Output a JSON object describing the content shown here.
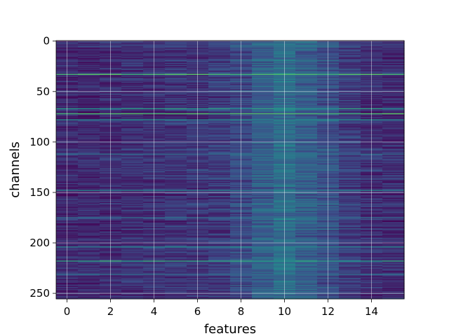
{
  "chart_data": {
    "type": "heatmap",
    "title": "",
    "xlabel": "features",
    "ylabel": "channels",
    "x_range": [
      -0.5,
      15.5
    ],
    "y_range": [
      -0.5,
      255.5
    ],
    "y_inverted": true,
    "x_ticks": [
      0,
      2,
      4,
      6,
      8,
      10,
      12,
      14
    ],
    "y_ticks": [
      0,
      50,
      100,
      150,
      200,
      250
    ],
    "grid": true,
    "colormap": "viridis",
    "n_rows": 256,
    "n_cols": 16,
    "column_profile": [
      0.12,
      0.12,
      0.13,
      0.14,
      0.14,
      0.15,
      0.16,
      0.18,
      0.22,
      0.3,
      0.36,
      0.3,
      0.25,
      0.18,
      0.14,
      0.13
    ],
    "highlight_rows": [
      {
        "row": 33,
        "intensity": 0.7
      },
      {
        "row": 67,
        "intensity": 0.55
      },
      {
        "row": 72,
        "intensity": 0.7
      },
      {
        "row": 78,
        "intensity": 0.5
      },
      {
        "row": 112,
        "intensity": 0.35
      },
      {
        "row": 148,
        "intensity": 0.45
      },
      {
        "row": 175,
        "intensity": 0.35
      },
      {
        "row": 204,
        "intensity": 0.45
      },
      {
        "row": 218,
        "intensity": 0.6
      },
      {
        "row": 231,
        "intensity": 0.35
      }
    ]
  }
}
